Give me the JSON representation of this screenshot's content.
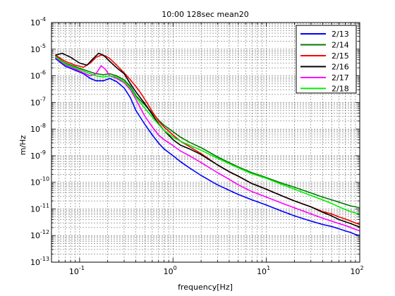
{
  "chart_data": {
    "type": "line",
    "title": "10:00 128sec mean20",
    "xlabel": "frequency[Hz]",
    "ylabel": "m/Hz",
    "xscale": "log",
    "yscale": "log",
    "xlim": [
      0.05,
      100
    ],
    "ylim": [
      1e-13,
      0.0001
    ],
    "grid": true,
    "legend_position": "top-right",
    "x_ticks": [
      {
        "value": 0.1,
        "base": "10",
        "exp": "-1"
      },
      {
        "value": 1,
        "base": "10",
        "exp": "0"
      },
      {
        "value": 10,
        "base": "10",
        "exp": "1"
      },
      {
        "value": 100,
        "base": "10",
        "exp": "2"
      }
    ],
    "y_ticks": [
      {
        "value": 1e-13,
        "base": "10",
        "exp": "-13"
      },
      {
        "value": 1e-12,
        "base": "10",
        "exp": "-12"
      },
      {
        "value": 1e-11,
        "base": "10",
        "exp": "-11"
      },
      {
        "value": 1e-10,
        "base": "10",
        "exp": "-10"
      },
      {
        "value": 1e-09,
        "base": "10",
        "exp": "-9"
      },
      {
        "value": 1e-08,
        "base": "10",
        "exp": "-8"
      },
      {
        "value": 1e-07,
        "base": "10",
        "exp": "-7"
      },
      {
        "value": 1e-06,
        "base": "10",
        "exp": "-6"
      },
      {
        "value": 1e-05,
        "base": "10",
        "exp": "-5"
      },
      {
        "value": 0.0001,
        "base": "10",
        "exp": "-4"
      }
    ],
    "series": [
      {
        "name": "2/13",
        "color": "#0000ff",
        "x": [
          0.055,
          0.07,
          0.09,
          0.11,
          0.13,
          0.15,
          0.18,
          0.21,
          0.25,
          0.3,
          0.35,
          0.4,
          0.5,
          0.6,
          0.7,
          0.8,
          1.0,
          1.2,
          1.5,
          2,
          3,
          4,
          5,
          7,
          10,
          15,
          20,
          30,
          40,
          50,
          60,
          70,
          80,
          90,
          100
        ],
        "y": [
          4.5e-06,
          2.3e-06,
          1.6e-06,
          1.2e-06,
          8e-07,
          6.5e-07,
          6.5e-07,
          8e-07,
          6e-07,
          3.5e-07,
          1.5e-07,
          5e-08,
          1.5e-08,
          6e-09,
          3e-09,
          1.8e-09,
          1e-09,
          6e-10,
          3.5e-10,
          1.8e-10,
          8e-11,
          5e-11,
          3.5e-11,
          2.2e-11,
          1.4e-11,
          8e-12,
          5.5e-12,
          3.5e-12,
          2.6e-12,
          2.2e-12,
          1.8e-12,
          1.5e-12,
          1.3e-12,
          1.1e-12,
          1e-12
        ]
      },
      {
        "name": "2/14",
        "color": "#007a00",
        "x": [
          0.055,
          0.07,
          0.09,
          0.11,
          0.13,
          0.15,
          0.18,
          0.21,
          0.25,
          0.3,
          0.35,
          0.4,
          0.5,
          0.6,
          0.7,
          0.8,
          1.0,
          1.2,
          1.5,
          2,
          3,
          4,
          5,
          7,
          10,
          15,
          20,
          30,
          40,
          50,
          60,
          70,
          80,
          90,
          100
        ],
        "y": [
          5.5e-06,
          3e-06,
          2.2e-06,
          1.7e-06,
          1.4e-06,
          1.2e-06,
          1.1e-06,
          1.2e-06,
          1e-06,
          7e-07,
          4e-07,
          1.8e-07,
          8e-08,
          4e-08,
          2.2e-08,
          1.4e-08,
          8e-09,
          5e-09,
          3.2e-09,
          2e-09,
          9e-10,
          5.5e-10,
          3.8e-10,
          2.3e-10,
          1.5e-10,
          9e-11,
          6.5e-11,
          4e-11,
          2.8e-11,
          2.2e-11,
          1.8e-11,
          1.5e-11,
          1.3e-11,
          1.2e-11,
          1.1e-11
        ]
      },
      {
        "name": "2/15",
        "color": "#ff0000",
        "x": [
          0.055,
          0.07,
          0.09,
          0.11,
          0.13,
          0.15,
          0.17,
          0.19,
          0.21,
          0.25,
          0.3,
          0.35,
          0.4,
          0.45,
          0.5,
          0.6,
          0.7,
          0.8,
          1.0,
          1.2,
          1.5,
          2,
          3,
          4,
          5,
          7,
          10,
          15,
          20,
          30,
          40,
          50,
          60,
          70,
          80,
          90,
          100
        ],
        "y": [
          6e-06,
          3.5e-06,
          2.5e-06,
          2.1e-06,
          3e-06,
          5e-06,
          6e-06,
          5.5e-06,
          4.5e-06,
          2.5e-06,
          1.3e-06,
          7e-07,
          4e-07,
          2.3e-07,
          1.3e-07,
          4.5e-08,
          2e-08,
          1.2e-08,
          6e-09,
          3.5e-09,
          2.2e-09,
          1.2e-09,
          4.5e-10,
          2.5e-10,
          1.7e-10,
          9e-11,
          5.5e-11,
          3e-11,
          2e-11,
          1.2e-11,
          8e-12,
          6.5e-12,
          5e-12,
          4.2e-12,
          3.5e-12,
          3e-12,
          2.6e-12
        ]
      },
      {
        "name": "2/16",
        "color": "#000000",
        "x": [
          0.055,
          0.065,
          0.08,
          0.1,
          0.12,
          0.14,
          0.16,
          0.18,
          0.21,
          0.25,
          0.3,
          0.35,
          0.4,
          0.5,
          0.6,
          0.7,
          0.8,
          1.0,
          1.2,
          1.5,
          2,
          3,
          4,
          5,
          7,
          10,
          15,
          20,
          30,
          40,
          50,
          60,
          70,
          80,
          90,
          100
        ],
        "y": [
          6e-06,
          7e-06,
          5e-06,
          3e-06,
          2.5e-06,
          4.5e-06,
          7e-06,
          6e-06,
          3.5e-06,
          2e-06,
          1.2e-06,
          5e-07,
          2.5e-07,
          9e-08,
          3.5e-08,
          1.6e-08,
          9e-09,
          4e-09,
          2.5e-09,
          1.8e-09,
          1.1e-09,
          4.5e-10,
          2.5e-10,
          1.7e-10,
          9e-11,
          5.5e-11,
          3e-11,
          2e-11,
          1.2e-11,
          7.5e-12,
          5.5e-12,
          4e-12,
          3.3e-12,
          2.8e-12,
          2.4e-12,
          2.1e-12
        ]
      },
      {
        "name": "2/17",
        "color": "#ff00ff",
        "x": [
          0.055,
          0.07,
          0.09,
          0.11,
          0.13,
          0.15,
          0.17,
          0.19,
          0.21,
          0.25,
          0.3,
          0.35,
          0.4,
          0.5,
          0.6,
          0.7,
          0.8,
          1.0,
          1.2,
          1.5,
          2,
          3,
          4,
          5,
          7,
          10,
          15,
          20,
          30,
          40,
          50,
          60,
          70,
          80,
          90,
          100
        ],
        "y": [
          5e-06,
          2.6e-06,
          1.8e-06,
          1.3e-06,
          1e-06,
          1.2e-06,
          2.4e-06,
          1.7e-06,
          1e-06,
          8e-07,
          5.5e-07,
          3e-07,
          1.3e-07,
          3e-08,
          1.2e-08,
          6e-09,
          4e-09,
          2.4e-09,
          1.5e-09,
          1e-09,
          5.5e-10,
          2.3e-10,
          1.3e-10,
          8e-11,
          4.5e-11,
          2.8e-11,
          1.6e-11,
          1.1e-11,
          6.5e-12,
          4.5e-12,
          3.5e-12,
          2.8e-12,
          2.4e-12,
          2e-12,
          1.7e-12,
          1.5e-12
        ]
      },
      {
        "name": "2/18",
        "color": "#00ee00",
        "x": [
          0.055,
          0.07,
          0.09,
          0.11,
          0.13,
          0.15,
          0.18,
          0.21,
          0.25,
          0.3,
          0.35,
          0.4,
          0.5,
          0.6,
          0.7,
          0.8,
          1.0,
          1.2,
          1.5,
          2,
          3,
          4,
          5,
          7,
          10,
          15,
          20,
          30,
          40,
          50,
          60,
          70,
          80,
          90,
          100
        ],
        "y": [
          5.2e-06,
          2.8e-06,
          2e-06,
          1.5e-06,
          1.2e-06,
          1e-06,
          9e-07,
          1e-06,
          9e-07,
          6e-07,
          3.5e-07,
          1.6e-07,
          6e-08,
          2.8e-08,
          1.5e-08,
          9e-09,
          5e-09,
          3.5e-09,
          2.5e-09,
          1.6e-09,
          8e-10,
          5e-10,
          3.5e-10,
          2.1e-10,
          1.4e-10,
          8e-11,
          5.5e-11,
          3.2e-11,
          2.2e-11,
          1.6e-11,
          1.2e-11,
          9.5e-12,
          8e-12,
          7e-12,
          6e-12
        ]
      }
    ]
  }
}
